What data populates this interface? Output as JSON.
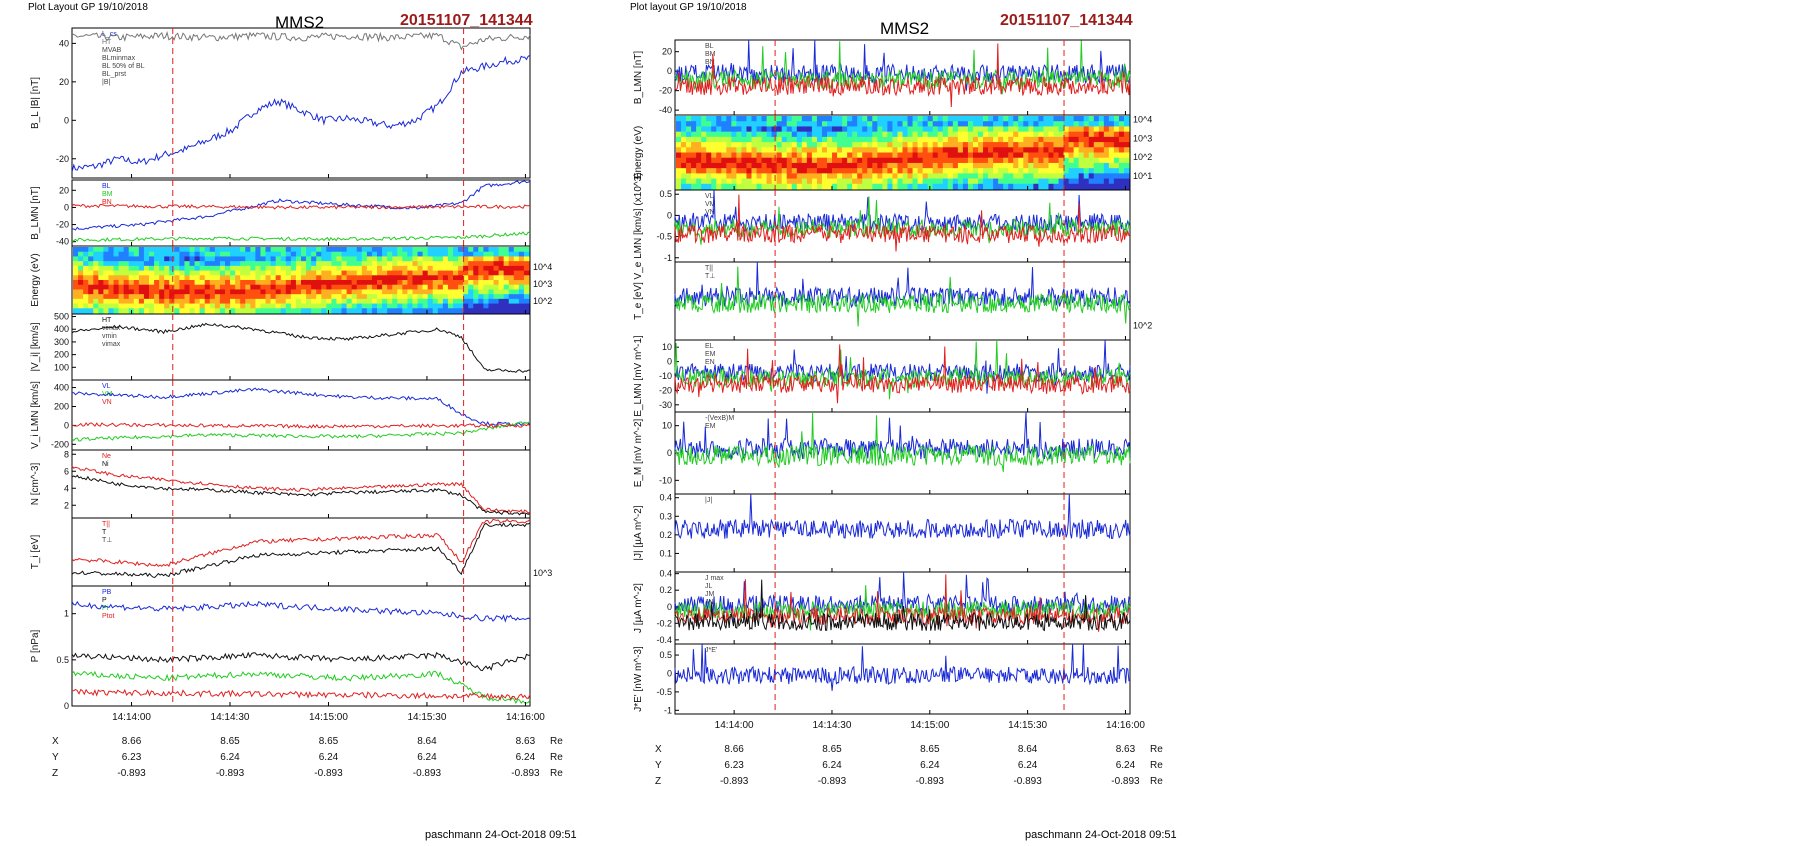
{
  "left": {
    "layout_title": "Plot Layout GP 19/10/2018",
    "sc": "MMS2",
    "event": "20151107_141344",
    "footer": "paschmann 24-Oct-2018 09:51"
  },
  "right": {
    "layout_title": "Plot layout GP 19/10/2018",
    "sc": "MMS2",
    "event": "20151107_141344",
    "footer": "paschmann 24-Oct-2018 09:51"
  },
  "time_ticks": [
    "14:14:00",
    "14:14:30",
    "14:15:00",
    "14:15:30",
    "14:16:00"
  ],
  "ephemeris": [
    {
      "label": "X",
      "values": [
        "8.66",
        "8.65",
        "8.65",
        "8.64",
        "8.63"
      ],
      "unit": "Re"
    },
    {
      "label": "Y",
      "values": [
        "6.23",
        "6.24",
        "6.24",
        "6.24",
        "6.24"
      ],
      "unit": "Re"
    },
    {
      "label": "Z",
      "values": [
        "-0.893",
        "-0.893",
        "-0.893",
        "-0.893",
        "-0.893"
      ],
      "unit": "Re"
    }
  ],
  "colors": {
    "title_red": "#9b1b1b",
    "b_blue": "#1a2ad6",
    "red": "#e02020",
    "green": "#22cc22",
    "black": "#111111",
    "magenta": "#d020d0"
  },
  "chart_data": [
    {
      "id": "left-stack",
      "type": "line",
      "x_range": [
        "14:13:40",
        "14:16:10"
      ],
      "x_ticks": [
        "14:14:00",
        "14:14:30",
        "14:15:00",
        "14:15:30",
        "14:16:00"
      ],
      "markers_red_dashed": [
        "14:14:10",
        "14:15:40"
      ],
      "panels": [
        {
          "ylabel": "B_L |B| [nT]",
          "yticks": [
            -20,
            0,
            20,
            40
          ],
          "ylim": [
            -30,
            48
          ],
          "legend": [
            "L_cs",
            "HT",
            "MVAB",
            "BLminmax",
            "BL 50% of BL",
            "BL_prst",
            "|B|"
          ],
          "series": [
            {
              "name": "BL",
              "color": "#1a2ad6",
              "x": [
                0,
                0.05,
                0.1,
                0.15,
                0.2,
                0.25,
                0.3,
                0.35,
                0.4,
                0.45,
                0.5,
                0.55,
                0.6,
                0.65,
                0.7,
                0.75,
                0.8,
                0.85,
                0.9,
                0.95,
                1
              ],
              "y": [
                -25,
                -24,
                -20,
                -22,
                -18,
                -15,
                -10,
                -5,
                5,
                10,
                5,
                0,
                1,
                -1,
                -3,
                0,
                8,
                25,
                28,
                31,
                32
              ]
            },
            {
              "name": "|B|",
              "color": "#777777",
              "x": [
                0,
                0.1,
                0.2,
                0.3,
                0.4,
                0.5,
                0.6,
                0.7,
                0.8,
                0.85,
                0.9,
                1
              ],
              "y": [
                44,
                43,
                44,
                43,
                44,
                43,
                44,
                43,
                44,
                38,
                42,
                44
              ]
            }
          ]
        },
        {
          "ylabel": "B_LMN [nT]",
          "yticks": [
            -40,
            -20,
            0,
            20
          ],
          "ylim": [
            -45,
            32
          ],
          "legend": [
            "BL",
            "BM",
            "BN"
          ],
          "series": [
            {
              "name": "BL",
              "color": "#1a2ad6",
              "x": [
                0,
                0.15,
                0.3,
                0.45,
                0.6,
                0.75,
                0.85,
                0.9,
                1
              ],
              "y": [
                -25,
                -20,
                -10,
                8,
                3,
                -1,
                5,
                25,
                31
              ]
            },
            {
              "name": "BM",
              "color": "#22cc22",
              "x": [
                0,
                0.3,
                0.6,
                0.85,
                1
              ],
              "y": [
                -38,
                -36,
                -37,
                -35,
                -30
              ]
            },
            {
              "name": "BN",
              "color": "#e02020",
              "x": [
                0,
                0.5,
                1
              ],
              "y": [
                2,
                0,
                1
              ]
            }
          ]
        },
        {
          "ylabel": "Energy (eV)",
          "type": "heatmap",
          "yticks": [
            "10^2",
            "10^3",
            "10^4"
          ]
        },
        {
          "ylabel": "|V_i| [km/s]",
          "yticks": [
            100,
            200,
            300,
            400,
            500
          ],
          "ylim": [
            0,
            520
          ],
          "legend": [
            "HT",
            "vimax",
            "vmin",
            "vimax"
          ],
          "series": [
            {
              "name": "|Vi|",
              "color": "#111111",
              "x": [
                0,
                0.1,
                0.2,
                0.3,
                0.4,
                0.5,
                0.6,
                0.7,
                0.8,
                0.85,
                0.9,
                1
              ],
              "y": [
                380,
                420,
                380,
                440,
                400,
                340,
                320,
                360,
                400,
                340,
                80,
                70
              ]
            }
          ]
        },
        {
          "ylabel": "V_i LMN [km/s]",
          "yticks": [
            -200,
            0,
            200,
            400
          ],
          "ylim": [
            -260,
            480
          ],
          "legend": [
            "VL",
            "VM",
            "VN"
          ],
          "series": [
            {
              "name": "VL",
              "color": "#1a2ad6",
              "x": [
                0,
                0.2,
                0.4,
                0.6,
                0.8,
                0.85,
                0.9,
                1
              ],
              "y": [
                340,
                300,
                380,
                300,
                280,
                120,
                20,
                10
              ]
            },
            {
              "name": "VM",
              "color": "#22cc22",
              "x": [
                0,
                0.3,
                0.6,
                0.85,
                1
              ],
              "y": [
                -150,
                -100,
                -120,
                -80,
                40
              ]
            },
            {
              "name": "VN",
              "color": "#e02020",
              "x": [
                0,
                0.5,
                1
              ],
              "y": [
                10,
                -10,
                0
              ]
            }
          ]
        },
        {
          "ylabel": "N [cm^-3]",
          "yticks": [
            2,
            4,
            6,
            8
          ],
          "ylim": [
            0.5,
            8.5
          ],
          "legend": [
            "Ne",
            "Ni"
          ],
          "series": [
            {
              "name": "Ne",
              "color": "#e02020",
              "x": [
                0,
                0.1,
                0.2,
                0.3,
                0.4,
                0.5,
                0.6,
                0.7,
                0.8,
                0.85,
                0.9,
                1
              ],
              "y": [
                6.5,
                5.5,
                5,
                4.5,
                4,
                3.8,
                4,
                4.2,
                4.5,
                4.5,
                1.5,
                1.2
              ]
            },
            {
              "name": "Ni",
              "color": "#111111",
              "x": [
                0,
                0.1,
                0.2,
                0.3,
                0.4,
                0.5,
                0.6,
                0.7,
                0.8,
                0.85,
                0.9,
                1
              ],
              "y": [
                5.5,
                4.5,
                4,
                3.8,
                3.5,
                3.2,
                3.5,
                3.6,
                3.8,
                3.2,
                1.2,
                1
              ]
            }
          ]
        },
        {
          "ylabel": "T_i [eV]",
          "yticks": [
            "10^3"
          ],
          "legend": [
            "T||",
            "T",
            "T⊥"
          ],
          "series": [
            {
              "name": "T||",
              "color": "#e02020",
              "x": [
                0,
                0.2,
                0.4,
                0.6,
                0.8,
                0.85,
                0.9,
                1
              ],
              "y": [
                0.4,
                0.3,
                0.65,
                0.7,
                0.75,
                0.35,
                0.95,
                0.95
              ]
            },
            {
              "name": "T",
              "color": "#111111",
              "x": [
                0,
                0.2,
                0.4,
                0.6,
                0.8,
                0.85,
                0.9,
                1
              ],
              "y": [
                0.2,
                0.15,
                0.45,
                0.5,
                0.55,
                0.2,
                0.9,
                0.9
              ]
            }
          ]
        },
        {
          "ylabel": "P [nPa]",
          "yticks": [
            0.0,
            0.5,
            1.0
          ],
          "ylim": [
            0,
            1.3
          ],
          "legend": [
            "PB",
            "P",
            "Pi",
            "Ptot"
          ],
          "series": [
            {
              "name": "PB",
              "color": "#1a2ad6",
              "x": [
                0,
                0.2,
                0.4,
                0.6,
                0.8,
                0.9,
                1
              ],
              "y": [
                1.1,
                1.05,
                1.1,
                1.05,
                1.0,
                0.95,
                0.95
              ]
            },
            {
              "name": "P",
              "color": "#111111",
              "x": [
                0,
                0.2,
                0.4,
                0.6,
                0.8,
                0.9,
                1
              ],
              "y": [
                0.55,
                0.5,
                0.55,
                0.5,
                0.55,
                0.4,
                0.55
              ]
            },
            {
              "name": "Pi",
              "color": "#22cc22",
              "x": [
                0,
                0.2,
                0.4,
                0.6,
                0.8,
                0.9,
                1
              ],
              "y": [
                0.35,
                0.3,
                0.35,
                0.3,
                0.35,
                0.1,
                0.05
              ]
            },
            {
              "name": "Pe",
              "color": "#e02020",
              "x": [
                0,
                1
              ],
              "y": [
                0.15,
                0.1
              ]
            }
          ]
        }
      ]
    },
    {
      "id": "right-stack",
      "type": "line",
      "x_range": [
        "14:13:40",
        "14:16:10"
      ],
      "x_ticks": [
        "14:14:00",
        "14:14:30",
        "14:15:00",
        "14:15:30",
        "14:16:00"
      ],
      "markers_red_dashed": [
        "14:14:10",
        "14:15:40"
      ],
      "panels": [
        {
          "ylabel": "B_LMN [nT]",
          "yticks": [
            -40,
            -20,
            0,
            20
          ],
          "ylim": [
            -45,
            32
          ],
          "legend": [
            "BL",
            "BM",
            "BN"
          ]
        },
        {
          "ylabel": "Energy (eV)",
          "type": "heatmap",
          "yticks": [
            "10^1",
            "10^2",
            "10^3",
            "10^4"
          ]
        },
        {
          "ylabel": "V_e LMN [km/s] (x10^3)",
          "yticks": [
            -1.0,
            -0.5,
            0.0,
            0.5
          ],
          "ylim": [
            -1.1,
            0.6
          ],
          "legend": [
            "VL",
            "VM",
            "VN"
          ]
        },
        {
          "ylabel": "T_e [eV]",
          "yticks": [
            "10^2"
          ],
          "legend": [
            "T||",
            "T⊥"
          ]
        },
        {
          "ylabel": "E_LMN [mV m^-1]",
          "yticks": [
            -30,
            -20,
            -10,
            0,
            10
          ],
          "ylim": [
            -35,
            15
          ],
          "legend": [
            "EL",
            "EM",
            "EN"
          ]
        },
        {
          "ylabel": "E_M [mV m^-2]",
          "yticks": [
            -10,
            0,
            10
          ],
          "ylim": [
            -15,
            15
          ],
          "legend": [
            "-(VexB)M",
            "EM"
          ]
        },
        {
          "ylabel": "|J| [µA m^-2]",
          "yticks": [
            0.1,
            0.2,
            0.3,
            0.4
          ],
          "ylim": [
            0,
            0.42
          ],
          "legend": [
            "|J|"
          ]
        },
        {
          "ylabel": "J [µA m^-2]",
          "yticks": [
            -0.4,
            -0.2,
            0.0,
            0.2,
            0.4
          ],
          "ylim": [
            -0.45,
            0.42
          ],
          "legend": [
            "J max",
            "JL",
            "JM",
            "JN"
          ]
        },
        {
          "ylabel": "J*E' [nW m^-3]",
          "yticks": [
            -1.0,
            -0.5,
            0.0,
            0.5
          ],
          "ylim": [
            -1.1,
            0.8
          ],
          "legend": [
            "J*E'"
          ]
        }
      ]
    }
  ]
}
